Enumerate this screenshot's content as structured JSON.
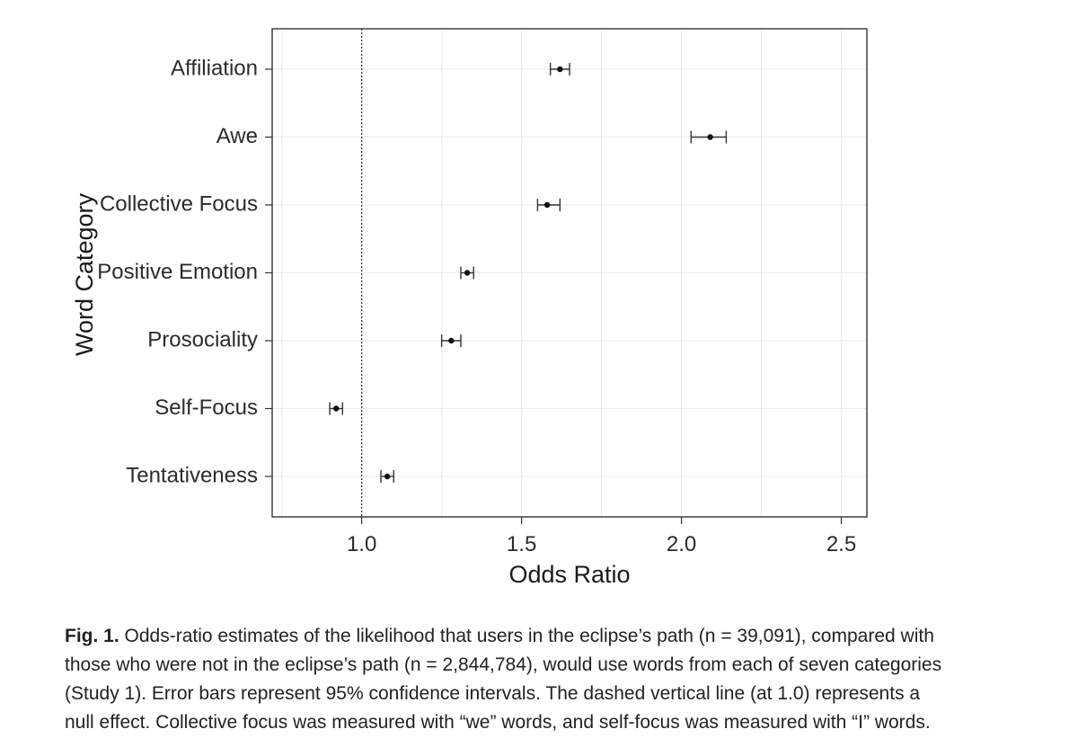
{
  "chart_data": {
    "type": "scatter",
    "categories": [
      "Affiliation",
      "Awe",
      "Collective Focus",
      "Positive Emotion",
      "Prosociality",
      "Self-Focus",
      "Tentativeness"
    ],
    "estimates": [
      1.62,
      2.09,
      1.58,
      1.33,
      1.28,
      0.92,
      1.08
    ],
    "ci_lower": [
      1.59,
      2.03,
      1.55,
      1.31,
      1.25,
      0.9,
      1.06
    ],
    "ci_upper": [
      1.65,
      2.14,
      1.62,
      1.35,
      1.31,
      0.94,
      1.1
    ],
    "xlabel": "Odds Ratio",
    "ylabel": "Word Category",
    "xlim": [
      0.72,
      2.58
    ],
    "xticks": [
      1.0,
      1.5,
      2.0,
      2.5
    ],
    "xtick_labels": [
      "1.0",
      "1.5",
      "2.0",
      "2.5"
    ],
    "reference_line": 1.0,
    "grid": true
  },
  "caption": {
    "label": "Fig. 1.",
    "lines": [
      " Odds-ratio estimates of the likelihood that users in the eclipse’s path (n = 39,091), compared with",
      "those who were not in the eclipse’s path (n = 2,844,784), would use words from each of seven categories",
      "(Study 1). Error bars represent 95% confidence intervals. The dashed vertical line (at 1.0) represents a",
      "null effect. Collective focus was measured with “we” words, and self-focus was measured with “I” words."
    ]
  }
}
